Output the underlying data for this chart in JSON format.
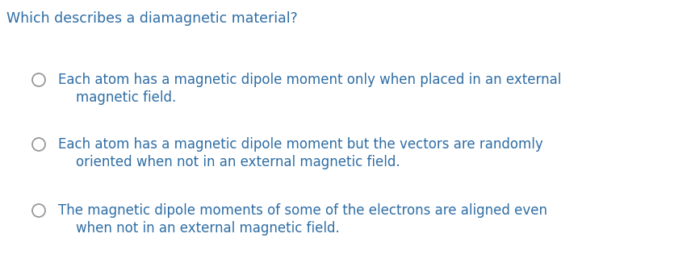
{
  "background_color": "#ffffff",
  "question": "Which describes a diamagnetic material?",
  "question_color": "#2e6da4",
  "question_fontsize": 12.5,
  "options": [
    {
      "line1": "Each atom has a magnetic dipole moment only when placed in an external",
      "line2": "magnetic field."
    },
    {
      "line1": "Each atom has a magnetic dipole moment but the vectors are randomly",
      "line2": "oriented when not in an external magnetic field."
    },
    {
      "line1": "The magnetic dipole moments of some of the electrons are aligned even",
      "line2": "when not in an external magnetic field."
    }
  ],
  "option_color": "#2e6da4",
  "option_fontsize": 12.0,
  "circle_color": "#999999",
  "figsize": [
    8.56,
    3.31
  ],
  "dpi": 100
}
